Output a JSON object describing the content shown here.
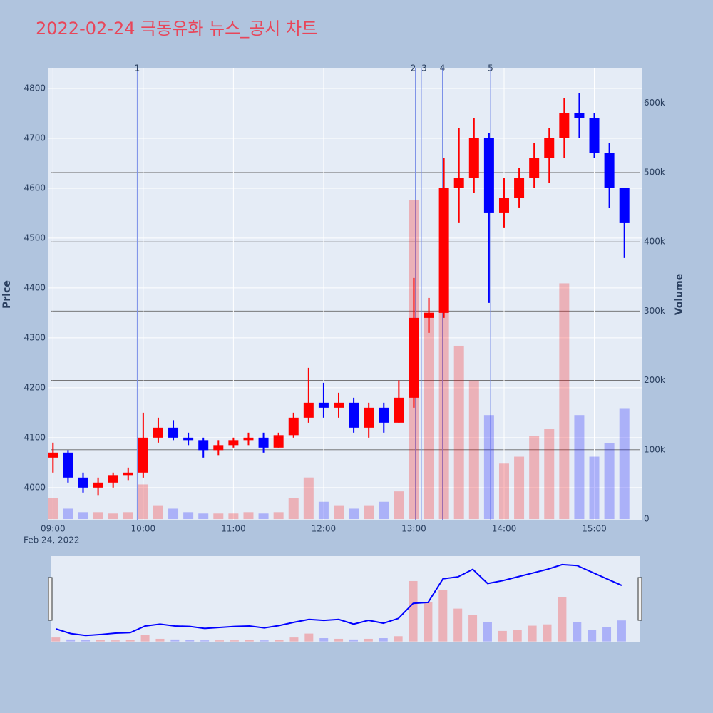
{
  "chart_data": {
    "type": "candlestick",
    "title": "2022-02-24 극동유화 뉴스_공시 차트",
    "y_label": "Price",
    "y2_label": "Volume",
    "x_date_label": "Feb 24, 2022",
    "up_color": "#ff0000",
    "down_color": "#0000ff",
    "x": [
      "09:00",
      "09:10",
      "09:20",
      "09:30",
      "09:40",
      "09:50",
      "10:00",
      "10:10",
      "10:20",
      "10:30",
      "10:40",
      "10:50",
      "11:00",
      "11:10",
      "11:20",
      "11:30",
      "11:40",
      "11:50",
      "12:00",
      "12:10",
      "12:20",
      "12:30",
      "12:40",
      "12:50",
      "13:00",
      "13:10",
      "13:20",
      "13:30",
      "13:40",
      "13:50",
      "14:00",
      "14:10",
      "14:20",
      "14:30",
      "14:40",
      "14:50",
      "15:00",
      "15:10",
      "15:20"
    ],
    "open": [
      4060,
      4070,
      4020,
      4000,
      4010,
      4025,
      4030,
      4100,
      4120,
      4100,
      4095,
      4075,
      4085,
      4095,
      4100,
      4080,
      4105,
      4140,
      4170,
      4160,
      4170,
      4120,
      4160,
      4130,
      4180,
      4340,
      4350,
      4600,
      4620,
      4700,
      4550,
      4580,
      4620,
      4660,
      4700,
      4750,
      4740,
      4670,
      4600
    ],
    "high": [
      4090,
      4075,
      4030,
      4020,
      4030,
      4040,
      4150,
      4140,
      4135,
      4110,
      4100,
      4095,
      4100,
      4110,
      4110,
      4110,
      4150,
      4240,
      4210,
      4190,
      4180,
      4170,
      4170,
      4215,
      4420,
      4380,
      4660,
      4720,
      4740,
      4710,
      4620,
      4640,
      4690,
      4720,
      4780,
      4790,
      4750,
      4690,
      4600
    ],
    "low": [
      4030,
      4010,
      3990,
      3985,
      4000,
      4015,
      4020,
      4090,
      4095,
      4085,
      4060,
      4065,
      4080,
      4085,
      4070,
      4080,
      4100,
      4130,
      4140,
      4140,
      4110,
      4100,
      4110,
      4130,
      4160,
      4310,
      4340,
      4530,
      4590,
      4370,
      4520,
      4560,
      4600,
      4610,
      4660,
      4700,
      4660,
      4560,
      4460
    ],
    "close": [
      4070,
      4020,
      4000,
      4010,
      4025,
      4030,
      4100,
      4120,
      4100,
      4095,
      4075,
      4085,
      4095,
      4100,
      4080,
      4105,
      4140,
      4170,
      4160,
      4170,
      4120,
      4160,
      4130,
      4180,
      4340,
      4350,
      4600,
      4620,
      4700,
      4550,
      4580,
      4620,
      4660,
      4700,
      4750,
      4740,
      4670,
      4600,
      4530
    ],
    "volume": [
      30000,
      15000,
      10000,
      10000,
      8000,
      10000,
      50000,
      20000,
      15000,
      10000,
      8000,
      8000,
      8000,
      10000,
      8000,
      10000,
      30000,
      60000,
      25000,
      20000,
      15000,
      20000,
      25000,
      40000,
      460000,
      300000,
      390000,
      250000,
      200000,
      150000,
      80000,
      90000,
      120000,
      130000,
      340000,
      150000,
      90000,
      110000,
      160000
    ],
    "xlim": [
      "08:57",
      "15:32"
    ],
    "xticks": [
      "09:00",
      "10:00",
      "11:00",
      "12:00",
      "13:00",
      "14:00",
      "15:00"
    ],
    "ylim": [
      3934,
      4840
    ],
    "yticks": [
      4000,
      4100,
      4200,
      4300,
      4400,
      4500,
      4600,
      4700,
      4800
    ],
    "y2lim": [
      -2000,
      650000
    ],
    "y2ticks": [
      {
        "value": 0,
        "label": "0"
      },
      {
        "value": 100000,
        "label": "100k"
      },
      {
        "value": 200000,
        "label": "200k"
      },
      {
        "value": 300000,
        "label": "300k"
      },
      {
        "value": 400000,
        "label": "400k"
      },
      {
        "value": 500000,
        "label": "500k"
      },
      {
        "value": 600000,
        "label": "600k"
      }
    ],
    "markers": [
      {
        "label": "1",
        "x": "09:56"
      },
      {
        "label": "2",
        "x": "13:01"
      },
      {
        "label": "3",
        "x": "13:05"
      },
      {
        "label": "4",
        "x": "13:19"
      },
      {
        "label": "5",
        "x": "13:51"
      }
    ]
  }
}
